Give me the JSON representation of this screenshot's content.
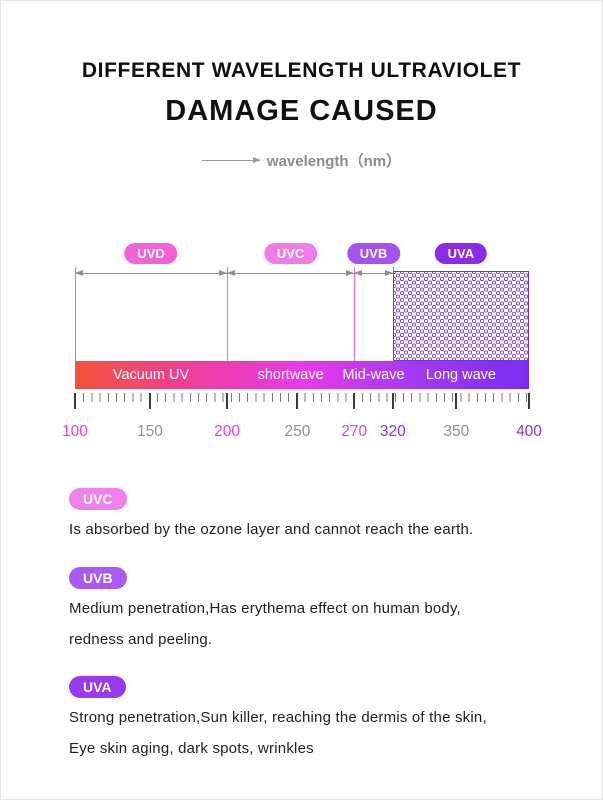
{
  "header": {
    "title_line1": "DIFFERENT WAVELENGTH ULTRAVIOLET",
    "title_line2": "DAMAGE CAUSED",
    "wavelength_label": "wavelength（nm）"
  },
  "chart_data": {
    "type": "band-diagram",
    "x_unit": "nm",
    "xlim": [
      100,
      400
    ],
    "bands": [
      {
        "id": "UVD",
        "badge": "UVD",
        "range_nm": [
          100,
          200
        ],
        "bar_label": "Vacuum UV",
        "badge_color": "#f163d4",
        "start_pct": 0,
        "end_pct": 33.5,
        "style": "arrow"
      },
      {
        "id": "UVC",
        "badge": "UVC",
        "range_nm": [
          200,
          270
        ],
        "bar_label": "shortwave",
        "badge_color": "#ef7de9",
        "start_pct": 33.5,
        "end_pct": 61.5,
        "style": "arrow"
      },
      {
        "id": "UVB",
        "badge": "UVB",
        "range_nm": [
          270,
          320
        ],
        "bar_label": "Mid-wave",
        "badge_color": "#a553ef",
        "start_pct": 61.5,
        "end_pct": 70,
        "style": "arrow"
      },
      {
        "id": "UVA",
        "badge": "UVA",
        "range_nm": [
          320,
          400
        ],
        "bar_label": "Long wave",
        "badge_color": "#8b2be8",
        "start_pct": 70,
        "end_pct": 100,
        "style": "dotted-box"
      }
    ],
    "ticks": [
      {
        "value": 100,
        "pct": 0,
        "color": "#e83ce0"
      },
      {
        "value": 150,
        "pct": 16.5,
        "color": "#8f8f8f"
      },
      {
        "value": 200,
        "pct": 33.5,
        "color": "#e83ce0"
      },
      {
        "value": 250,
        "pct": 49,
        "color": "#8f8f8f"
      },
      {
        "value": 270,
        "pct": 61.5,
        "color": "#e83ce0"
      },
      {
        "value": 320,
        "pct": 70,
        "color": "#8b2fe8"
      },
      {
        "value": 350,
        "pct": 84,
        "color": "#8f8f8f"
      },
      {
        "value": 400,
        "pct": 100,
        "color": "#8b2fe8"
      }
    ],
    "guide_lines": [
      {
        "pct": 0,
        "color": "#9a9a9a"
      },
      {
        "pct": 33.5,
        "color": "#f06ace"
      },
      {
        "pct": 61.5,
        "color": "#f06ace"
      },
      {
        "pct": 70,
        "color": "#c052ec"
      }
    ],
    "bar_gradient": [
      "#f4533a",
      "#ee3e98",
      "#e83ae9",
      "#a23af0",
      "#7b2cf2"
    ]
  },
  "sections": [
    {
      "badge": "UVC",
      "badge_color": "#f080ec",
      "lines": [
        "Is absorbed by the ozone layer and cannot reach the earth."
      ]
    },
    {
      "badge": "UVB",
      "badge_color": "#a95af2",
      "lines": [
        "Medium penetration,Has erythema effect on human body,",
        "redness and peeling."
      ]
    },
    {
      "badge": "UVA",
      "badge_color": "#9a3af0",
      "lines": [
        "Strong penetration,Sun killer, reaching the dermis of the skin,",
        "Eye skin aging, dark spots, wrinkles"
      ]
    }
  ]
}
